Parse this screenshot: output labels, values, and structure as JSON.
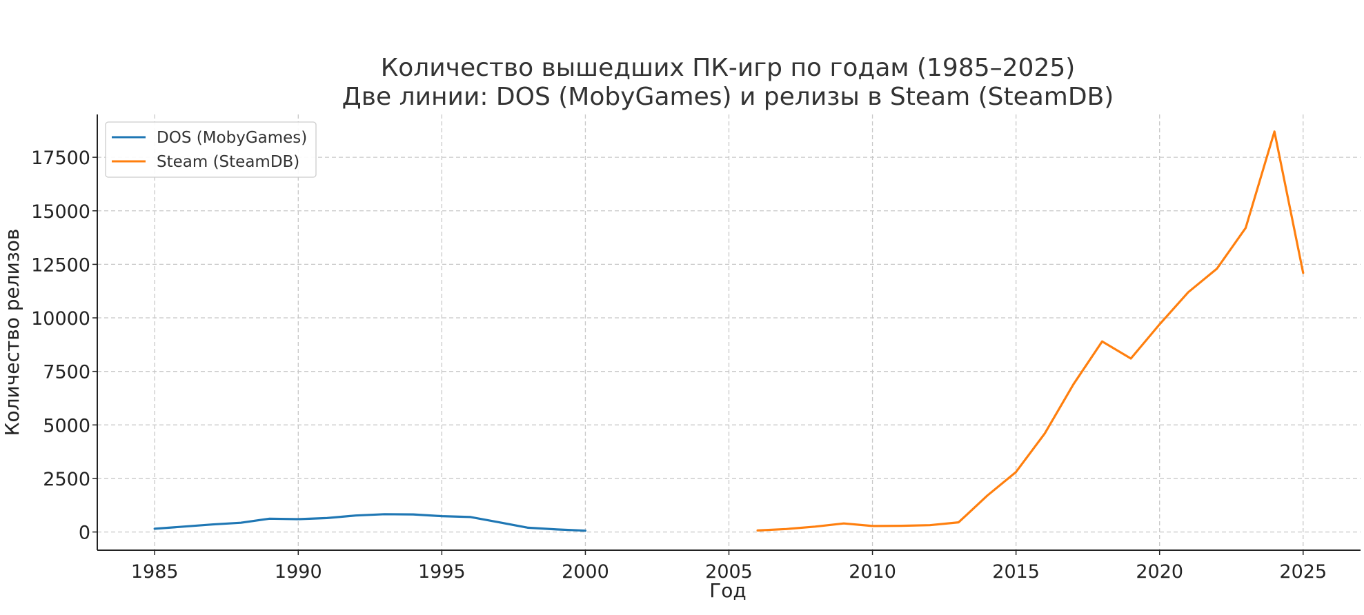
{
  "chart_data": {
    "type": "line",
    "title_line1": "Количество вышедших ПК-игр по годам (1985–2025)",
    "title_line2": "Две линии: DOS (MobyGames) и релизы в Steam (SteamDB)",
    "xlabel": "Год",
    "ylabel": "Количество релизов",
    "xlim": [
      1983,
      2027
    ],
    "ylim": [
      -850,
      19500
    ],
    "x_ticks": [
      1985,
      1990,
      1995,
      2000,
      2005,
      2010,
      2015,
      2020,
      2025
    ],
    "y_ticks": [
      0,
      2500,
      5000,
      7500,
      10000,
      12500,
      15000,
      17500
    ],
    "grid": true,
    "legend_position": "top-left",
    "series": [
      {
        "name": "DOS (MobyGames)",
        "color": "#1f77b4",
        "x": [
          1985,
          1986,
          1987,
          1988,
          1989,
          1990,
          1991,
          1992,
          1993,
          1994,
          1995,
          1996,
          1997,
          1998,
          1999,
          2000
        ],
        "y": [
          150,
          250,
          350,
          430,
          620,
          600,
          650,
          770,
          830,
          820,
          740,
          700,
          450,
          200,
          120,
          60
        ]
      },
      {
        "name": "Steam (SteamDB)",
        "color": "#ff7f0e",
        "x": [
          2006,
          2007,
          2008,
          2009,
          2010,
          2011,
          2012,
          2013,
          2014,
          2015,
          2016,
          2017,
          2018,
          2019,
          2020,
          2021,
          2022,
          2023,
          2024,
          2025
        ],
        "y": [
          70,
          140,
          250,
          400,
          280,
          290,
          320,
          450,
          1700,
          2800,
          4600,
          6900,
          8900,
          8100,
          9700,
          11200,
          12300,
          14200,
          18700,
          12100
        ]
      }
    ]
  }
}
